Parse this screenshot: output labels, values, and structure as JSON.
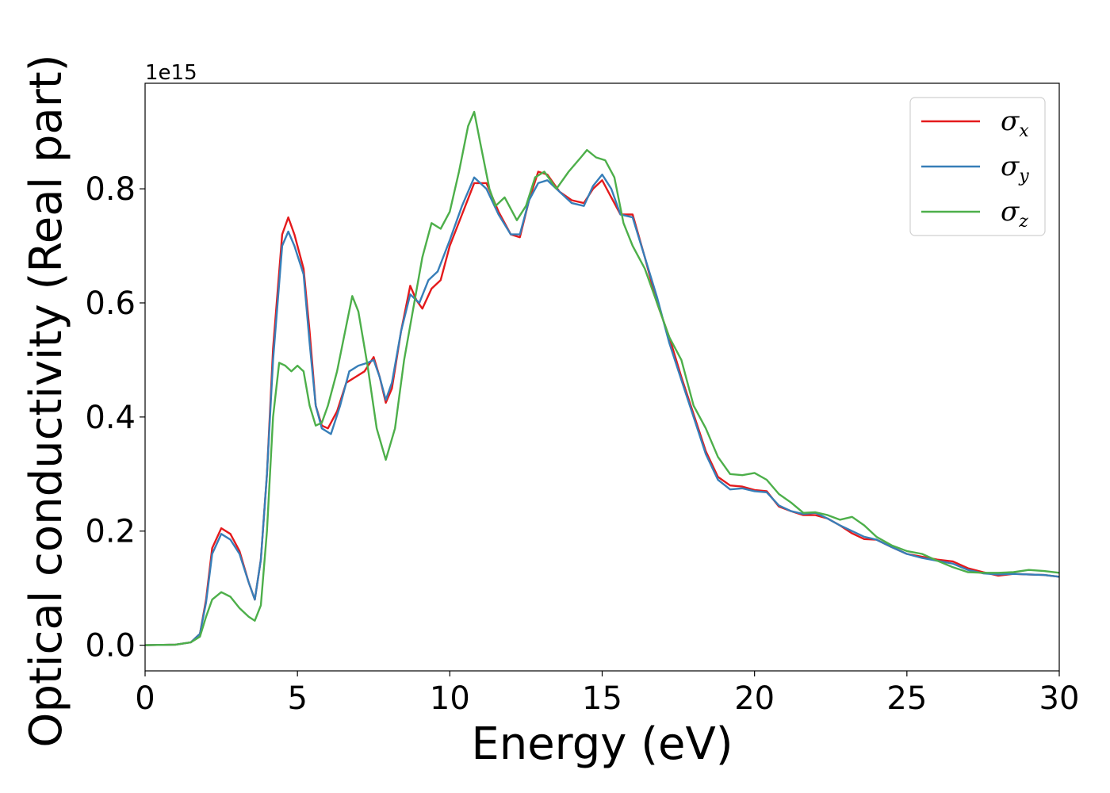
{
  "chart_data": {
    "type": "line",
    "xlabel": "Energy (eV)",
    "ylabel": "Optical conductivity (Real part)",
    "y_offset_label": "1e15",
    "xlim": [
      0,
      30
    ],
    "ylim": [
      -0.045,
      0.985
    ],
    "x_ticks": [
      0,
      5,
      10,
      15,
      20,
      25,
      30
    ],
    "x_tick_labels": [
      "0",
      "5",
      "10",
      "15",
      "20",
      "25",
      "30"
    ],
    "y_ticks": [
      0.0,
      0.2,
      0.4,
      0.6,
      0.8
    ],
    "y_tick_labels": [
      "0.0",
      "0.2",
      "0.4",
      "0.6",
      "0.8"
    ],
    "grid": false,
    "legend_position": "top-right",
    "series": [
      {
        "name": "σ",
        "subscript": "x",
        "color": "#e41a1c",
        "points": [
          [
            0,
            0
          ],
          [
            1,
            0.001
          ],
          [
            1.5,
            0.005
          ],
          [
            1.8,
            0.02
          ],
          [
            2.0,
            0.08
          ],
          [
            2.2,
            0.17
          ],
          [
            2.5,
            0.205
          ],
          [
            2.8,
            0.195
          ],
          [
            3.1,
            0.165
          ],
          [
            3.4,
            0.11
          ],
          [
            3.6,
            0.08
          ],
          [
            3.8,
            0.15
          ],
          [
            4.0,
            0.3
          ],
          [
            4.2,
            0.52
          ],
          [
            4.5,
            0.72
          ],
          [
            4.7,
            0.75
          ],
          [
            4.9,
            0.72
          ],
          [
            5.2,
            0.66
          ],
          [
            5.4,
            0.55
          ],
          [
            5.6,
            0.42
          ],
          [
            5.8,
            0.385
          ],
          [
            6.0,
            0.38
          ],
          [
            6.3,
            0.41
          ],
          [
            6.6,
            0.46
          ],
          [
            6.9,
            0.47
          ],
          [
            7.2,
            0.48
          ],
          [
            7.5,
            0.505
          ],
          [
            7.7,
            0.47
          ],
          [
            7.9,
            0.425
          ],
          [
            8.1,
            0.45
          ],
          [
            8.4,
            0.55
          ],
          [
            8.7,
            0.63
          ],
          [
            8.9,
            0.605
          ],
          [
            9.1,
            0.59
          ],
          [
            9.4,
            0.625
          ],
          [
            9.7,
            0.64
          ],
          [
            10.0,
            0.7
          ],
          [
            10.4,
            0.755
          ],
          [
            10.8,
            0.81
          ],
          [
            11.2,
            0.81
          ],
          [
            11.6,
            0.76
          ],
          [
            12.0,
            0.72
          ],
          [
            12.3,
            0.715
          ],
          [
            12.6,
            0.78
          ],
          [
            12.9,
            0.83
          ],
          [
            13.2,
            0.825
          ],
          [
            13.6,
            0.795
          ],
          [
            14.0,
            0.78
          ],
          [
            14.4,
            0.775
          ],
          [
            14.7,
            0.8
          ],
          [
            15.0,
            0.815
          ],
          [
            15.3,
            0.785
          ],
          [
            15.6,
            0.755
          ],
          [
            16.0,
            0.755
          ],
          [
            16.4,
            0.68
          ],
          [
            16.8,
            0.6
          ],
          [
            17.2,
            0.54
          ],
          [
            17.6,
            0.47
          ],
          [
            18.0,
            0.405
          ],
          [
            18.4,
            0.34
          ],
          [
            18.8,
            0.295
          ],
          [
            19.2,
            0.28
          ],
          [
            19.6,
            0.278
          ],
          [
            20.0,
            0.272
          ],
          [
            20.4,
            0.27
          ],
          [
            20.8,
            0.243
          ],
          [
            21.2,
            0.235
          ],
          [
            21.6,
            0.228
          ],
          [
            22.0,
            0.228
          ],
          [
            22.4,
            0.222
          ],
          [
            22.8,
            0.21
          ],
          [
            23.2,
            0.196
          ],
          [
            23.6,
            0.186
          ],
          [
            24.0,
            0.185
          ],
          [
            24.5,
            0.172
          ],
          [
            25.0,
            0.16
          ],
          [
            25.5,
            0.155
          ],
          [
            26.0,
            0.15
          ],
          [
            26.5,
            0.147
          ],
          [
            27.0,
            0.135
          ],
          [
            27.5,
            0.128
          ],
          [
            28.0,
            0.122
          ],
          [
            28.5,
            0.125
          ],
          [
            29.0,
            0.124
          ],
          [
            29.5,
            0.123
          ],
          [
            30.0,
            0.12
          ]
        ]
      },
      {
        "name": "σ",
        "subscript": "y",
        "color": "#377eb8",
        "points": [
          [
            0,
            0
          ],
          [
            1,
            0.001
          ],
          [
            1.5,
            0.005
          ],
          [
            1.8,
            0.02
          ],
          [
            2.0,
            0.075
          ],
          [
            2.2,
            0.16
          ],
          [
            2.5,
            0.195
          ],
          [
            2.8,
            0.185
          ],
          [
            3.1,
            0.16
          ],
          [
            3.4,
            0.11
          ],
          [
            3.6,
            0.08
          ],
          [
            3.8,
            0.15
          ],
          [
            4.0,
            0.3
          ],
          [
            4.2,
            0.5
          ],
          [
            4.5,
            0.7
          ],
          [
            4.7,
            0.725
          ],
          [
            4.9,
            0.7
          ],
          [
            5.2,
            0.65
          ],
          [
            5.4,
            0.53
          ],
          [
            5.6,
            0.42
          ],
          [
            5.8,
            0.38
          ],
          [
            6.1,
            0.37
          ],
          [
            6.4,
            0.42
          ],
          [
            6.7,
            0.48
          ],
          [
            7.0,
            0.49
          ],
          [
            7.3,
            0.495
          ],
          [
            7.5,
            0.5
          ],
          [
            7.7,
            0.47
          ],
          [
            7.9,
            0.43
          ],
          [
            8.1,
            0.46
          ],
          [
            8.4,
            0.55
          ],
          [
            8.7,
            0.615
          ],
          [
            9.0,
            0.6
          ],
          [
            9.3,
            0.64
          ],
          [
            9.6,
            0.655
          ],
          [
            10.0,
            0.71
          ],
          [
            10.4,
            0.77
          ],
          [
            10.8,
            0.82
          ],
          [
            11.2,
            0.8
          ],
          [
            11.6,
            0.755
          ],
          [
            12.0,
            0.72
          ],
          [
            12.3,
            0.72
          ],
          [
            12.6,
            0.78
          ],
          [
            12.9,
            0.81
          ],
          [
            13.2,
            0.815
          ],
          [
            13.6,
            0.795
          ],
          [
            14.0,
            0.775
          ],
          [
            14.4,
            0.77
          ],
          [
            14.7,
            0.805
          ],
          [
            15.0,
            0.825
          ],
          [
            15.3,
            0.8
          ],
          [
            15.6,
            0.755
          ],
          [
            16.0,
            0.75
          ],
          [
            16.4,
            0.68
          ],
          [
            16.8,
            0.61
          ],
          [
            17.2,
            0.53
          ],
          [
            17.6,
            0.465
          ],
          [
            18.0,
            0.4
          ],
          [
            18.4,
            0.335
          ],
          [
            18.8,
            0.29
          ],
          [
            19.2,
            0.273
          ],
          [
            19.6,
            0.275
          ],
          [
            20.0,
            0.27
          ],
          [
            20.4,
            0.268
          ],
          [
            20.8,
            0.245
          ],
          [
            21.2,
            0.235
          ],
          [
            21.6,
            0.23
          ],
          [
            22.0,
            0.232
          ],
          [
            22.4,
            0.222
          ],
          [
            22.8,
            0.21
          ],
          [
            23.2,
            0.2
          ],
          [
            23.6,
            0.19
          ],
          [
            24.0,
            0.185
          ],
          [
            24.5,
            0.172
          ],
          [
            25.0,
            0.16
          ],
          [
            25.5,
            0.153
          ],
          [
            26.0,
            0.148
          ],
          [
            26.5,
            0.143
          ],
          [
            27.0,
            0.132
          ],
          [
            27.5,
            0.126
          ],
          [
            28.0,
            0.124
          ],
          [
            28.5,
            0.125
          ],
          [
            29.0,
            0.124
          ],
          [
            29.5,
            0.123
          ],
          [
            30.0,
            0.12
          ]
        ]
      },
      {
        "name": "σ",
        "subscript": "z",
        "color": "#4daf4a",
        "points": [
          [
            0,
            0
          ],
          [
            1,
            0.001
          ],
          [
            1.5,
            0.005
          ],
          [
            1.8,
            0.015
          ],
          [
            2.0,
            0.05
          ],
          [
            2.2,
            0.08
          ],
          [
            2.5,
            0.093
          ],
          [
            2.8,
            0.085
          ],
          [
            3.1,
            0.065
          ],
          [
            3.4,
            0.05
          ],
          [
            3.6,
            0.043
          ],
          [
            3.8,
            0.07
          ],
          [
            4.0,
            0.2
          ],
          [
            4.2,
            0.4
          ],
          [
            4.4,
            0.495
          ],
          [
            4.6,
            0.49
          ],
          [
            4.8,
            0.48
          ],
          [
            5.0,
            0.49
          ],
          [
            5.2,
            0.48
          ],
          [
            5.4,
            0.42
          ],
          [
            5.6,
            0.385
          ],
          [
            5.8,
            0.39
          ],
          [
            6.0,
            0.42
          ],
          [
            6.3,
            0.48
          ],
          [
            6.6,
            0.56
          ],
          [
            6.8,
            0.612
          ],
          [
            7.0,
            0.585
          ],
          [
            7.3,
            0.49
          ],
          [
            7.6,
            0.38
          ],
          [
            7.9,
            0.325
          ],
          [
            8.2,
            0.38
          ],
          [
            8.5,
            0.5
          ],
          [
            8.8,
            0.59
          ],
          [
            9.1,
            0.68
          ],
          [
            9.4,
            0.74
          ],
          [
            9.7,
            0.73
          ],
          [
            10.0,
            0.76
          ],
          [
            10.3,
            0.83
          ],
          [
            10.6,
            0.91
          ],
          [
            10.8,
            0.935
          ],
          [
            11.0,
            0.88
          ],
          [
            11.3,
            0.8
          ],
          [
            11.5,
            0.77
          ],
          [
            11.8,
            0.785
          ],
          [
            12.2,
            0.745
          ],
          [
            12.5,
            0.77
          ],
          [
            12.8,
            0.82
          ],
          [
            13.1,
            0.83
          ],
          [
            13.5,
            0.8
          ],
          [
            13.9,
            0.83
          ],
          [
            14.3,
            0.855
          ],
          [
            14.5,
            0.868
          ],
          [
            14.8,
            0.855
          ],
          [
            15.1,
            0.85
          ],
          [
            15.4,
            0.82
          ],
          [
            15.7,
            0.74
          ],
          [
            16.0,
            0.7
          ],
          [
            16.4,
            0.66
          ],
          [
            16.8,
            0.6
          ],
          [
            17.2,
            0.54
          ],
          [
            17.6,
            0.5
          ],
          [
            18.0,
            0.42
          ],
          [
            18.4,
            0.38
          ],
          [
            18.8,
            0.33
          ],
          [
            19.2,
            0.3
          ],
          [
            19.6,
            0.298
          ],
          [
            20.0,
            0.302
          ],
          [
            20.4,
            0.29
          ],
          [
            20.8,
            0.265
          ],
          [
            21.2,
            0.25
          ],
          [
            21.6,
            0.232
          ],
          [
            22.0,
            0.233
          ],
          [
            22.4,
            0.228
          ],
          [
            22.8,
            0.22
          ],
          [
            23.2,
            0.225
          ],
          [
            23.6,
            0.21
          ],
          [
            24.0,
            0.19
          ],
          [
            24.5,
            0.175
          ],
          [
            25.0,
            0.165
          ],
          [
            25.5,
            0.16
          ],
          [
            26.0,
            0.148
          ],
          [
            26.5,
            0.137
          ],
          [
            27.0,
            0.128
          ],
          [
            27.5,
            0.127
          ],
          [
            28.0,
            0.127
          ],
          [
            28.5,
            0.128
          ],
          [
            29.0,
            0.132
          ],
          [
            29.5,
            0.13
          ],
          [
            30.0,
            0.127
          ]
        ]
      }
    ]
  }
}
